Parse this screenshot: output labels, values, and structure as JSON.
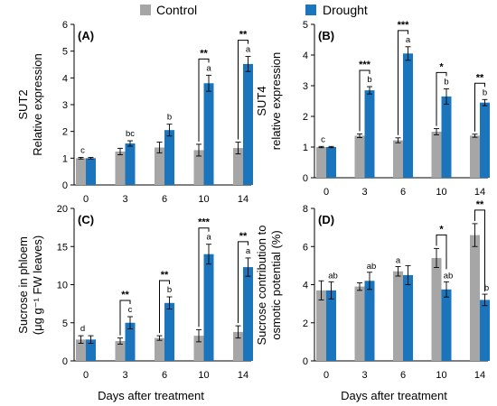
{
  "legend": {
    "entries": [
      {
        "name": "Control",
        "color": "#a6a6a6"
      },
      {
        "name": "Drought",
        "color": "#1b75bc"
      }
    ]
  },
  "xlabel": "Days after treatment",
  "chart_data": [
    {
      "type": "bar",
      "panel_label": "(A)",
      "ylabel_lines": [
        "SUT2",
        "Relative expression"
      ],
      "categories": [
        "0",
        "3",
        "6",
        "10",
        "14"
      ],
      "ylim": [
        0,
        6
      ],
      "yticks": [
        0,
        1,
        2,
        3,
        4,
        5,
        6
      ],
      "series": [
        {
          "name": "Control",
          "values": [
            1.0,
            1.25,
            1.4,
            1.3,
            1.38
          ],
          "errors": [
            0.03,
            0.12,
            0.2,
            0.22,
            0.22
          ]
        },
        {
          "name": "Drought",
          "values": [
            1.0,
            1.55,
            2.05,
            3.8,
            4.52
          ],
          "errors": [
            0.03,
            0.1,
            0.22,
            0.3,
            0.28
          ]
        }
      ],
      "letters": [
        {
          "index": 0,
          "text": "c"
        },
        {
          "index": 1,
          "text": "bc"
        },
        {
          "index": 2,
          "text": "b"
        },
        {
          "index": 3,
          "text": "a"
        },
        {
          "index": 4,
          "text": "a"
        }
      ],
      "significance": [
        {
          "index": 3,
          "text": "**"
        },
        {
          "index": 4,
          "text": "**"
        }
      ]
    },
    {
      "type": "bar",
      "panel_label": "(B)",
      "ylabel_lines": [
        "SUT4",
        "relative expression"
      ],
      "categories": [
        "0",
        "3",
        "6",
        "10",
        "14"
      ],
      "ylim": [
        0,
        5
      ],
      "yticks": [
        0,
        1,
        2,
        3,
        4,
        5
      ],
      "series": [
        {
          "name": "Control",
          "values": [
            1.0,
            1.37,
            1.22,
            1.5,
            1.37
          ],
          "errors": [
            0.02,
            0.06,
            0.08,
            0.1,
            0.05
          ]
        },
        {
          "name": "Drought",
          "values": [
            1.0,
            2.85,
            4.05,
            2.65,
            2.45
          ],
          "errors": [
            0.02,
            0.12,
            0.22,
            0.25,
            0.1
          ]
        }
      ],
      "letters": [
        {
          "index": 0,
          "text": "c"
        },
        {
          "index": 1,
          "text": "b"
        },
        {
          "index": 2,
          "text": "a"
        },
        {
          "index": 3,
          "text": "b"
        },
        {
          "index": 4,
          "text": "b"
        }
      ],
      "significance": [
        {
          "index": 1,
          "text": "***"
        },
        {
          "index": 2,
          "text": "***"
        },
        {
          "index": 3,
          "text": "*"
        },
        {
          "index": 4,
          "text": "**"
        }
      ]
    },
    {
      "type": "bar",
      "panel_label": "(C)",
      "ylabel_lines": [
        "Sucrose in phloem",
        "(μg g⁻¹ FW leaves)"
      ],
      "categories": [
        "0",
        "3",
        "6",
        "10",
        "14"
      ],
      "ylim": [
        0,
        20
      ],
      "yticks": [
        0,
        5,
        10,
        15,
        20
      ],
      "series": [
        {
          "name": "Control",
          "values": [
            2.8,
            2.6,
            3.0,
            3.3,
            3.8
          ],
          "errors": [
            0.5,
            0.4,
            0.3,
            0.8,
            0.8
          ]
        },
        {
          "name": "Drought",
          "values": [
            2.8,
            5.0,
            7.6,
            14.0,
            12.3
          ],
          "errors": [
            0.5,
            0.8,
            0.8,
            1.3,
            1.2
          ]
        }
      ],
      "letters": [
        {
          "index": 0,
          "text": "d"
        },
        {
          "index": 1,
          "text": "c"
        },
        {
          "index": 2,
          "text": "b"
        },
        {
          "index": 3,
          "text": "a"
        },
        {
          "index": 4,
          "text": "a"
        }
      ],
      "significance": [
        {
          "index": 1,
          "text": "**"
        },
        {
          "index": 2,
          "text": "**"
        },
        {
          "index": 3,
          "text": "***"
        },
        {
          "index": 4,
          "text": "**"
        }
      ]
    },
    {
      "type": "bar",
      "panel_label": "(D)",
      "ylabel_lines": [
        "Sucrose contribution to",
        "osmotic potential (%)"
      ],
      "categories": [
        "0",
        "3",
        "6",
        "10",
        "14"
      ],
      "ylim": [
        0,
        8
      ],
      "yticks": [
        0,
        2,
        4,
        6,
        8
      ],
      "series": [
        {
          "name": "Control",
          "values": [
            3.7,
            3.9,
            4.7,
            5.4,
            6.6
          ],
          "errors": [
            0.5,
            0.2,
            0.25,
            0.5,
            0.6
          ]
        },
        {
          "name": "Drought",
          "values": [
            3.7,
            4.2,
            4.5,
            3.75,
            3.2
          ],
          "errors": [
            0.45,
            0.45,
            0.5,
            0.4,
            0.3
          ]
        }
      ],
      "letters": [
        {
          "index": 0,
          "text": "ab"
        },
        {
          "index": 1,
          "text": "ab"
        },
        {
          "index": 2,
          "text": "a"
        },
        {
          "index": 3,
          "text": "ab"
        },
        {
          "index": 4,
          "text": "b"
        }
      ],
      "significance": [
        {
          "index": 3,
          "text": "*"
        },
        {
          "index": 4,
          "text": "**"
        }
      ]
    }
  ]
}
